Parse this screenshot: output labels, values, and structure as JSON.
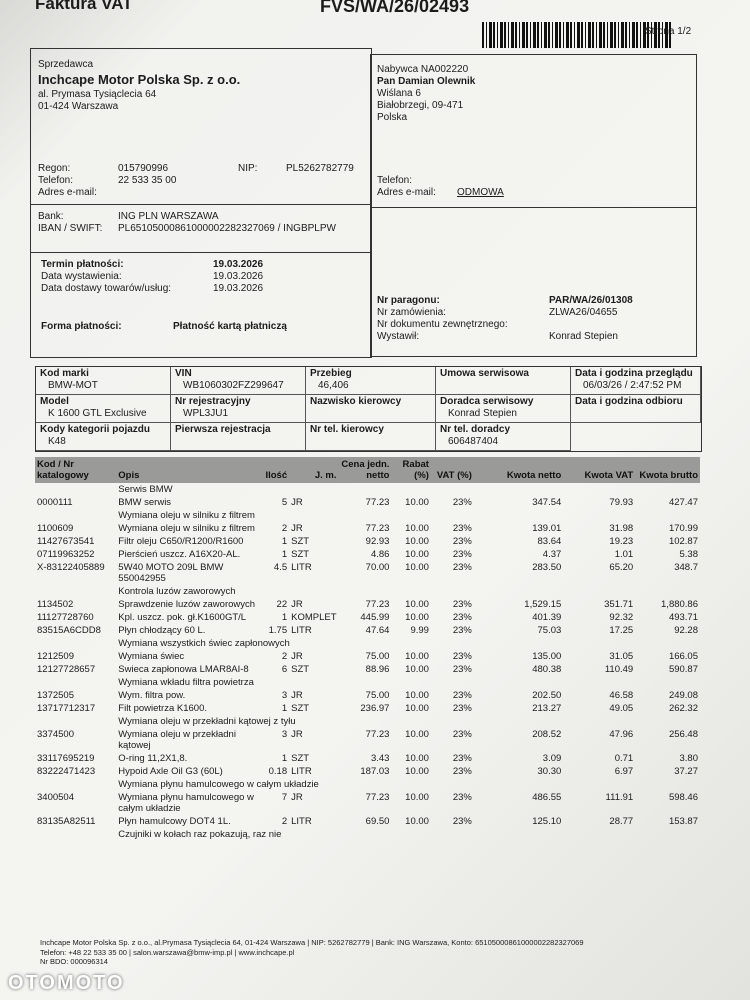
{
  "header": {
    "title": "Faktura VAT",
    "number": "FVS/WA/26/02493",
    "page": "Strona 1/2"
  },
  "seller": {
    "label": "Sprzedawca",
    "name": "Inchcape Motor Polska Sp. z o.o.",
    "address": [
      "al. Prymasa Tysiąclecia 64",
      "01-424 Warszawa"
    ],
    "regon_label": "Regon:",
    "regon": "015790996",
    "nip_label": "NIP:",
    "nip": "PL5262782779",
    "phone_label": "Telefon:",
    "phone": "22 533 35 00",
    "email_label": "Adres e-mail:",
    "bank_label": "Bank:",
    "bank": "ING PLN WARSZAWA",
    "iban_label": "IBAN / SWIFT:",
    "iban": "PL65105000861000002282327069 / INGBPLPW"
  },
  "dates": {
    "rows": [
      [
        "Termin płatności:",
        "19.03.2026"
      ],
      [
        "Data wystawienia:",
        "19.03.2026"
      ],
      [
        "Data dostawy towarów/usług:",
        "19.03.2026"
      ]
    ],
    "payment_label": "Forma płatności:",
    "payment": "Płatność kartą płatniczą"
  },
  "buyer": {
    "lines": [
      "Nabywca NA002220",
      "Pan Damian Olewnik",
      "Wiślana 6",
      "Białobrzegi, 09-471",
      "Polska"
    ],
    "phone_label": "Telefon:",
    "email_label": "Adres e-mail:",
    "email": "ODMOWA"
  },
  "orders": {
    "rows": [
      [
        "Nr paragonu:",
        "PAR/WA/26/01308"
      ],
      [
        "Nr zamówienia:",
        "ZLWA26/04655"
      ],
      [
        "Nr dokumentu zewnętrznego:"
      ],
      [
        "Wystawił:",
        "Konrad Stepien"
      ]
    ]
  },
  "vehicle": {
    "cells": [
      {
        "label": "Kod marki",
        "value": "BMW-MOT"
      },
      {
        "label": "VIN",
        "value": "WB1060302FZ299647"
      },
      {
        "label": "Przebieg",
        "value": "46,406"
      },
      {
        "label": "Umowa serwisowa"
      },
      {
        "label": "Data i godzina przeglądu",
        "value": "06/03/26 / 2:47:52 PM"
      },
      {
        "label": "Model",
        "value": "K 1600 GTL Exclusive"
      },
      {
        "label": "Nr rejestracyjny",
        "value": "WPL3JU1"
      },
      {
        "label": "Nazwisko kierowcy"
      },
      {
        "label": "Doradca serwisowy",
        "value": "Konrad Stepien"
      },
      {
        "label": "Data i godzina odbioru"
      },
      {
        "label": "Kody kategorii pojazdu",
        "value": "K48"
      },
      {
        "label": "Pierwsza rejestracja"
      },
      {
        "label": "Nr tel. kierowcy"
      },
      {
        "label": "Nr tel. doradcy",
        "value": "606487404"
      }
    ]
  },
  "items": {
    "headers": [
      "Kod / Nr katalogowy",
      "Opis",
      "Ilość",
      "J. m.",
      "Cena jedn. netto",
      "Rabat (%)",
      "VAT (%)",
      "Kwota netto",
      "Kwota VAT",
      "Kwota brutto"
    ],
    "rows": [
      {
        "section": "Serwis BMW"
      },
      [
        "0000111",
        "BMW serwis",
        "5",
        "JR",
        "77.23",
        "10.00",
        "23%",
        "347.54",
        "79.93",
        "427.47"
      ],
      {
        "section": "Wymiana oleju w silniku z filtrem"
      },
      [
        "1100609",
        "Wymiana oleju w silniku z filtrem",
        "2",
        "JR",
        "77.23",
        "10.00",
        "23%",
        "139.01",
        "31.98",
        "170.99"
      ],
      [
        "11427673541",
        "Filtr oleju C650/R1200/R1600",
        "1",
        "SZT",
        "92.93",
        "10.00",
        "23%",
        "83.64",
        "19.23",
        "102.87"
      ],
      [
        "07119963252",
        "Pierścień uszcz. A16X20-AL.",
        "1",
        "SZT",
        "4.86",
        "10.00",
        "23%",
        "4.37",
        "1.01",
        "5.38"
      ],
      [
        "X-83122405889",
        "5W40 MOTO 209L BMW 550042955",
        "4.5",
        "LITR",
        "70.00",
        "10.00",
        "23%",
        "283.50",
        "65.20",
        "348.7"
      ],
      {
        "section": "Kontrola luzów zaworowych"
      },
      [
        "1134502",
        "Sprawdzenie luzów zaworowych",
        "22",
        "JR",
        "77.23",
        "10.00",
        "23%",
        "1,529.15",
        "351.71",
        "1,880.86"
      ],
      [
        "11127728760",
        "Kpl. uszcz. pok. gł.K1600GT/L",
        "1",
        "KOMPLET",
        "445.99",
        "10.00",
        "23%",
        "401.39",
        "92.32",
        "493.71"
      ],
      [
        "83515A6CDD8",
        "Płyn chłodzący 60 L.",
        "1.75",
        "LITR",
        "47.64",
        "9.99",
        "23%",
        "75.03",
        "17.25",
        "92.28"
      ],
      {
        "section": "Wymiana wszystkich świec zapłonowych"
      },
      [
        "1212509",
        "Wymiana świec",
        "2",
        "JR",
        "75.00",
        "10.00",
        "23%",
        "135.00",
        "31.05",
        "166.05"
      ],
      [
        "12127728657",
        "Swieca zapłonowa LMAR8AI-8",
        "6",
        "SZT",
        "88.96",
        "10.00",
        "23%",
        "480.38",
        "110.49",
        "590.87"
      ],
      {
        "section": "Wymiana wkładu filtra powietrza"
      },
      [
        "1372505",
        "Wym. filtra pow.",
        "3",
        "JR",
        "75.00",
        "10.00",
        "23%",
        "202.50",
        "46.58",
        "249.08"
      ],
      [
        "13717712317",
        "Filt powietrza K1600.",
        "1",
        "SZT",
        "236.97",
        "10.00",
        "23%",
        "213.27",
        "49.05",
        "262.32"
      ],
      {
        "section": "Wymiana oleju w przekładni kątowej z tyłu"
      },
      [
        "3374500",
        "Wymiana oleju w przekładni kątowej",
        "3",
        "JR",
        "77.23",
        "10.00",
        "23%",
        "208.52",
        "47.96",
        "256.48"
      ],
      [
        "33117695219",
        "O-ring 11,2X1,8.",
        "1",
        "SZT",
        "3.43",
        "10.00",
        "23%",
        "3.09",
        "0.71",
        "3.80"
      ],
      [
        "83222471423",
        "Hypoid Axle Oil G3 (60L)",
        "0.18",
        "LITR",
        "187.03",
        "10.00",
        "23%",
        "30.30",
        "6.97",
        "37.27"
      ],
      {
        "section": "Wymiana płynu hamulcowego w całym układzie"
      },
      [
        "3400504",
        "Wymiana płynu hamulcowego w całym układzie",
        "7",
        "JR",
        "77.23",
        "10.00",
        "23%",
        "486.55",
        "111.91",
        "598.46"
      ],
      [
        "83135A82511",
        "Płyn hamulcowy DOT4 1L.",
        "2",
        "LITR",
        "69.50",
        "10.00",
        "23%",
        "125.10",
        "28.77",
        "153.87"
      ],
      {
        "section": "Czujniki w kołach raz pokazują, raz nie"
      }
    ]
  },
  "footer": {
    "lines": [
      "Inchcape Motor Polska Sp. z o.o., al.Prymasa Tysiąclecia 64, 01-424 Warszawa | NIP: 5262782779 | Bank: ING Warszawa, Konto: 65105000861000002282327069",
      "Telefon: +48 22 533 35 00 | salon.warszawa@bmw-imp.pl | www.inchcape.pl",
      "Nr BDO: 000096314"
    ]
  },
  "watermark": "OTOMOTO"
}
